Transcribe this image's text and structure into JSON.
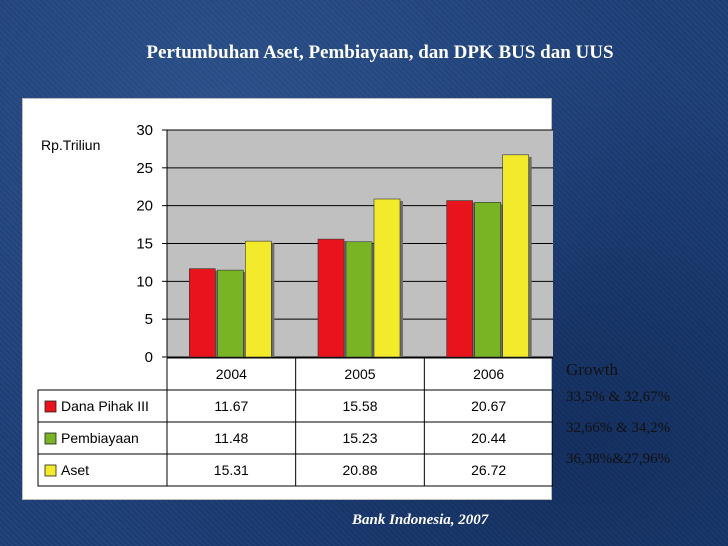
{
  "slide": {
    "title": "Pertumbuhan Aset, Pembiayaan, dan DPK BUS dan UUS",
    "source": "Bank Indonesia, 2007"
  },
  "growth": {
    "title": "Growth",
    "lines": [
      "33,5% & 32,67%",
      "32,66% & 34,2%",
      "36,38%&27,96%"
    ]
  },
  "chart_data": {
    "type": "bar",
    "ylabel": "Rp.Triliun",
    "ylim": [
      0,
      30
    ],
    "yticks": [
      0,
      5,
      10,
      15,
      20,
      25,
      30
    ],
    "grid": true,
    "categories": [
      "2004",
      "2005",
      "2006"
    ],
    "series": [
      {
        "name": "Dana Pihak III",
        "values": [
          11.67,
          15.58,
          20.67
        ],
        "labels": [
          "11.67",
          "15.58",
          "20.67"
        ],
        "color": "#e8131b"
      },
      {
        "name": "Pembiayaan",
        "values": [
          11.48,
          15.23,
          20.44
        ],
        "labels": [
          "11.48",
          "15.23",
          "20.44"
        ],
        "color": "#78b424"
      },
      {
        "name": "Aset",
        "values": [
          15.31,
          20.88,
          26.72
        ],
        "labels": [
          "15.31",
          "20.88",
          "26.72"
        ],
        "color": "#f2ea2a"
      }
    ],
    "table": true
  }
}
